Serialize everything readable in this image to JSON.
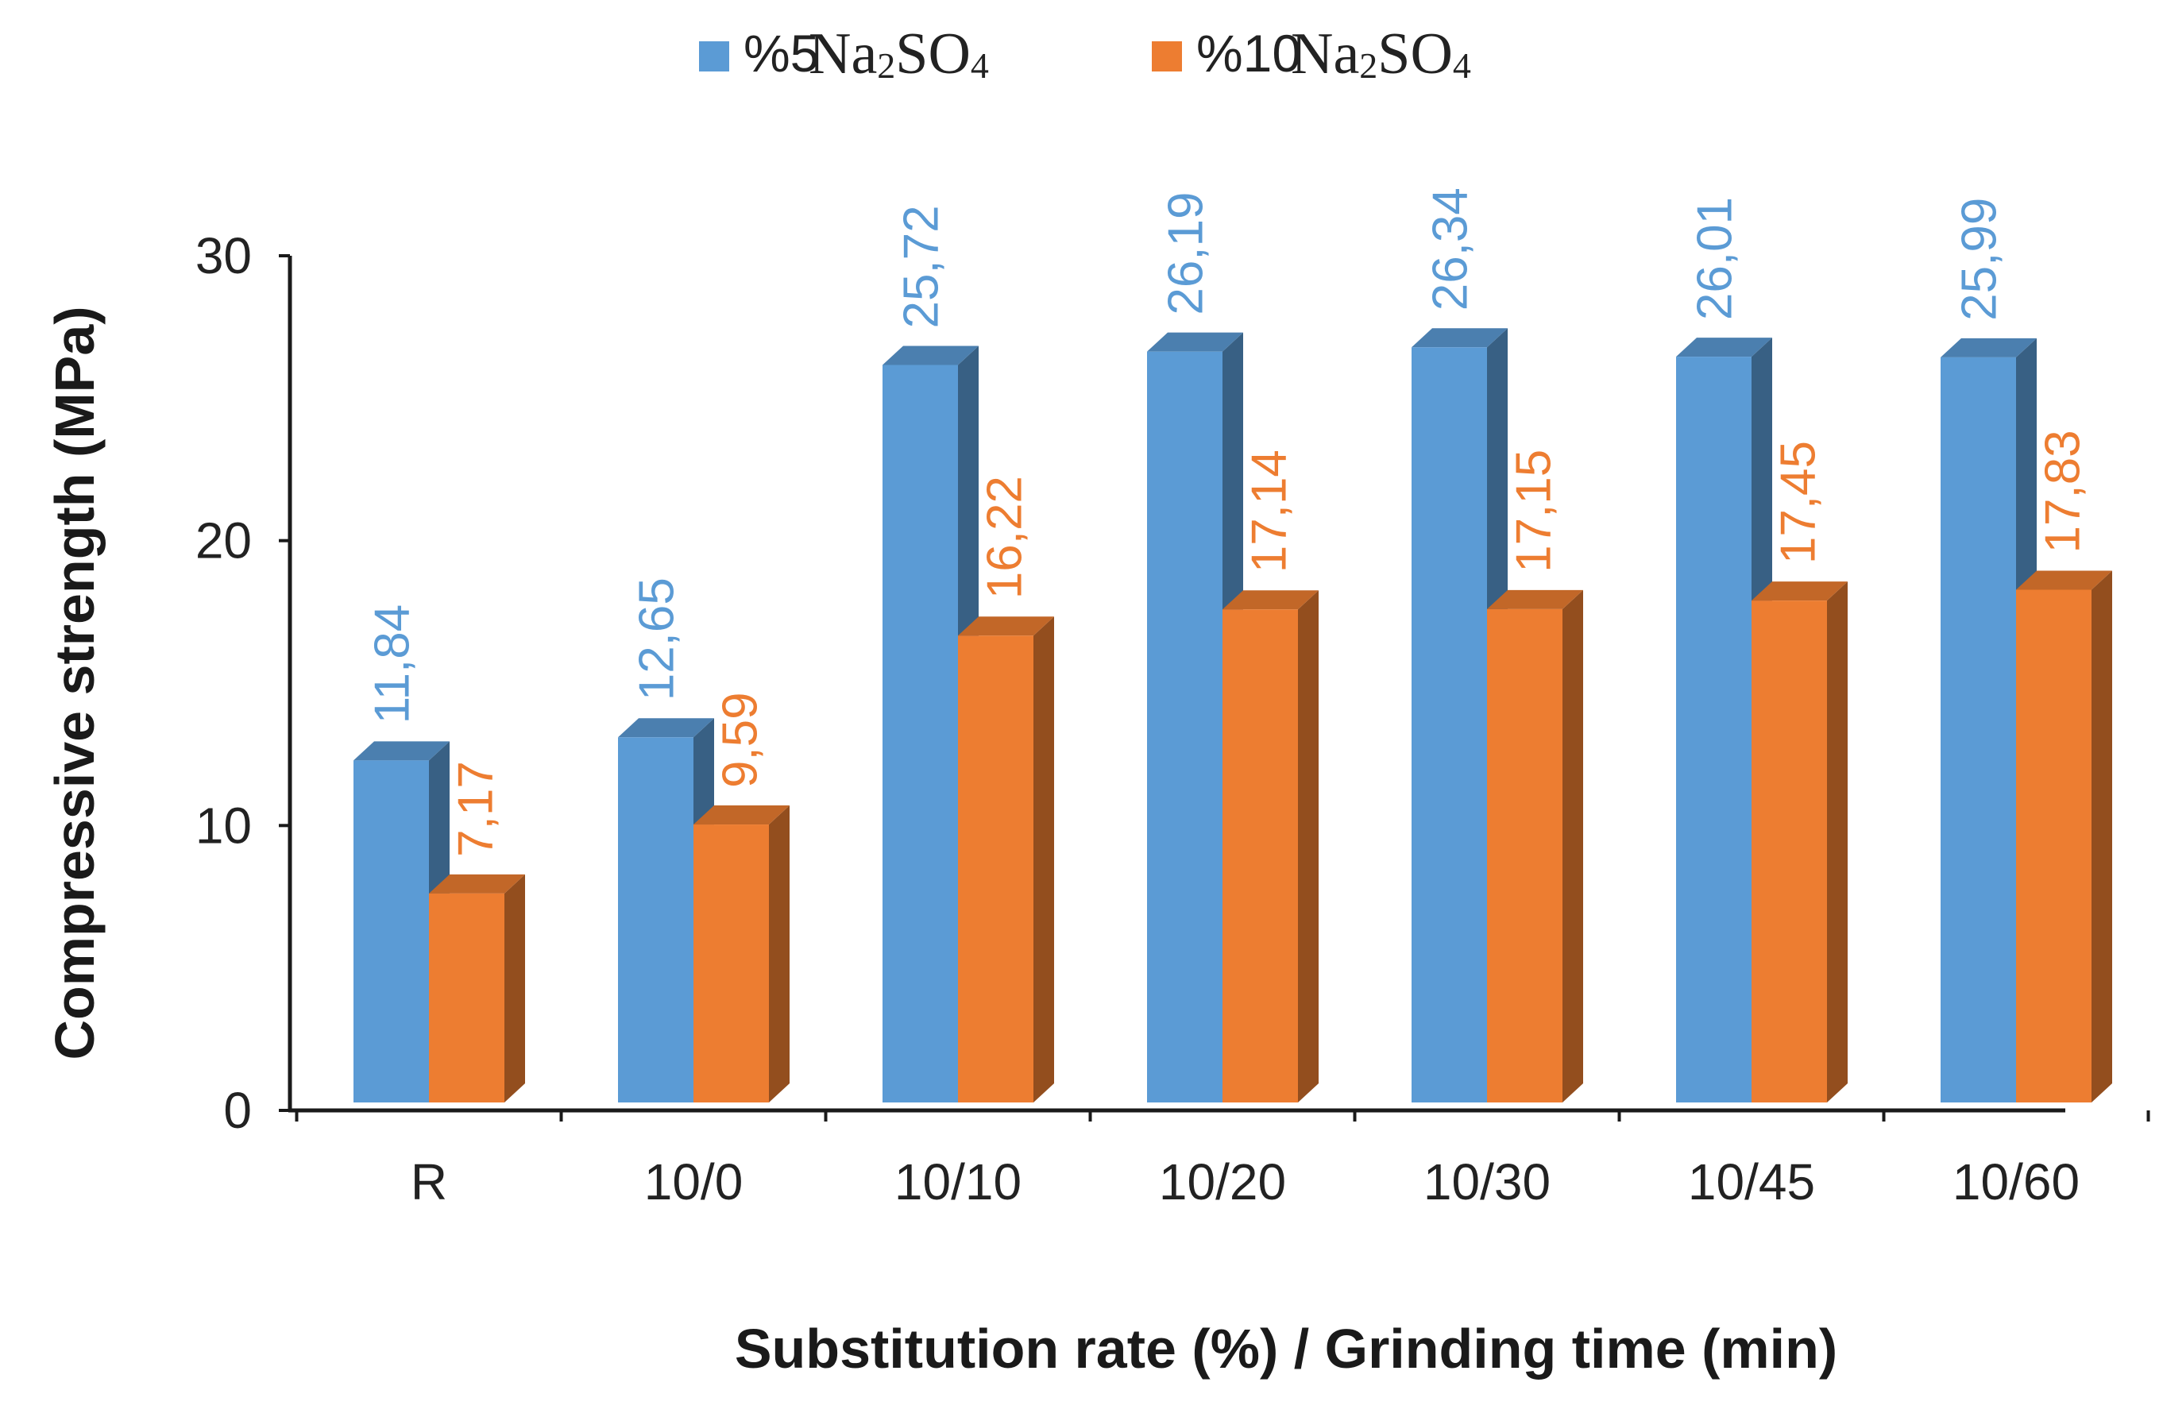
{
  "chart_data": {
    "type": "bar",
    "style": "3d-clustered-column",
    "title": "",
    "xlabel": "Substitution  rate (%)  / Grinding time (min)",
    "ylabel": "Compressive  strength  (MPa)",
    "ylim": [
      0,
      30
    ],
    "yticks": [
      0,
      10,
      20,
      30
    ],
    "categories": [
      "R",
      "10/0",
      "10/10",
      "10/20",
      "10/30",
      "10/45",
      "10/60"
    ],
    "legend_position": "top-center",
    "series": [
      {
        "name": "%5 Na2SO4",
        "legend_prefix": "%5",
        "legend_chem": [
          "Na",
          "2",
          "SO",
          "4"
        ],
        "color": "#5b9bd5",
        "values": [
          11.84,
          12.65,
          25.72,
          26.19,
          26.34,
          26.01,
          25.99
        ],
        "labels": [
          "11,84",
          "12,65",
          "25,72",
          "26,19",
          "26,34",
          "26,01",
          "25,99"
        ]
      },
      {
        "name": "%10 Na2SO4",
        "legend_prefix": "%10",
        "legend_chem": [
          "Na",
          "2",
          "SO",
          "4"
        ],
        "color": "#ed7d31",
        "values": [
          7.17,
          9.59,
          16.22,
          17.14,
          17.15,
          17.45,
          17.83
        ],
        "labels": [
          "7,17",
          "9,59",
          "16,22",
          "17,14",
          "17,15",
          "17,45",
          "17,83"
        ]
      }
    ]
  }
}
